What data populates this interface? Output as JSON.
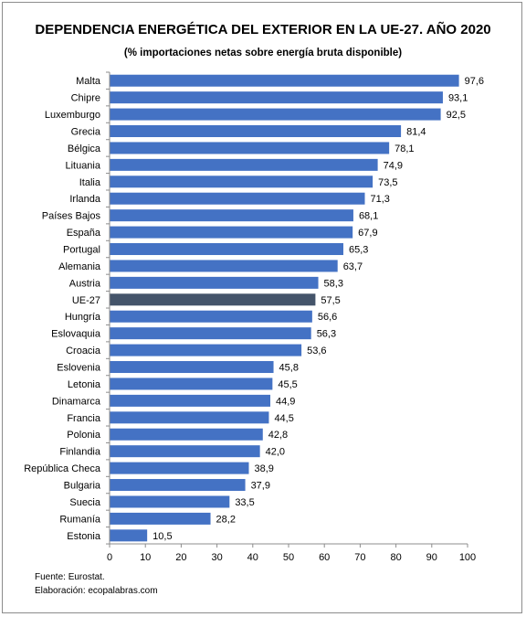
{
  "chart_data": {
    "type": "bar",
    "orientation": "horizontal",
    "title": "DEPENDENCIA ENERGÉTICA DEL EXTERIOR EN LA UE-27. AÑO 2020",
    "subtitle": "(% importaciones netas  sobre energía bruta disponible)",
    "categories": [
      "Malta",
      "Chipre",
      "Luxemburgo",
      "Grecia",
      "Bélgica",
      "Lituania",
      "Italia",
      "Irlanda",
      "Países Bajos",
      "España",
      "Portugal",
      "Alemania",
      "Austria",
      "UE-27",
      "Hungría",
      "Eslovaquia",
      "Croacia",
      "Eslovenia",
      "Letonia",
      "Dinamarca",
      "Francia",
      "Polonia",
      "Finlandia",
      "República Checa",
      "Bulgaria",
      "Suecia",
      "Rumanía",
      "Estonia"
    ],
    "values": [
      97.6,
      93.1,
      92.5,
      81.4,
      78.1,
      74.9,
      73.5,
      71.3,
      68.1,
      67.9,
      65.3,
      63.7,
      58.3,
      57.5,
      56.6,
      56.3,
      53.6,
      45.8,
      45.5,
      44.9,
      44.5,
      42.8,
      42.0,
      38.9,
      37.9,
      33.5,
      28.2,
      10.5
    ],
    "value_labels": [
      "97,6",
      "93,1",
      "92,5",
      "81,4",
      "78,1",
      "74,9",
      "73,5",
      "71,3",
      "68,1",
      "67,9",
      "65,3",
      "63,7",
      "58,3",
      "57,5",
      "56,6",
      "56,3",
      "53,6",
      "45,8",
      "45,5",
      "44,9",
      "44,5",
      "42,8",
      "42,0",
      "38,9",
      "37,9",
      "33,5",
      "28,2",
      "10,5"
    ],
    "highlight": "UE-27",
    "xlim": [
      0,
      100
    ],
    "xticks": [
      "0",
      "10",
      "20",
      "30",
      "40",
      "50",
      "60",
      "70",
      "80",
      "90",
      "100"
    ],
    "grid": false,
    "legend": "none",
    "colors": {
      "bar": "#4472c4",
      "highlight": "#44546a",
      "axis": "#8c8c8c",
      "text": "#000000"
    }
  },
  "footer": {
    "source": "Fuente: Eurostat.",
    "credit": "Elaboración: ecopalabras.com"
  }
}
